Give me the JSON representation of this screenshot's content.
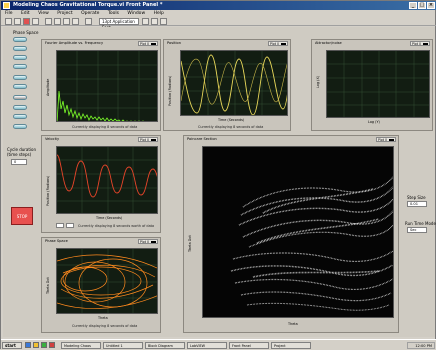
{
  "window": {
    "title": "Modeling Chaos Gravitational Torque.vi Front Panel *"
  },
  "menu": [
    "File",
    "Edit",
    "View",
    "Project",
    "Operate",
    "Tools",
    "Window",
    "Help"
  ],
  "toolbar": {
    "font": "13pt Application Font"
  },
  "left": {
    "phase_space_label": "Phase Space",
    "toggles": [
      "",
      "",
      "",
      "",
      "",
      "",
      "",
      "",
      "",
      ""
    ],
    "stop_label": "STOP",
    "cycle_label": "Cycle duration\n(time steps)",
    "cycle_value": "0"
  },
  "graphs": {
    "fourier": {
      "title": "Fourier Amplitude vs. Frequency",
      "legend": "Plot 0",
      "ylabel": "Amplitude",
      "footer": "Currently displaying 8 seconds of data"
    },
    "position": {
      "title": "Position",
      "legend": "Plot 0",
      "ylabel": "Position (Radians)",
      "xlabel": "Time (Seconds)",
      "footer": "Currently displaying 8 seconds of data"
    },
    "attractor": {
      "title": "Attractor/noise",
      "legend": "Plot 0",
      "ylabel": "Log (X)",
      "xlabel": "Log (Y)"
    },
    "velocity": {
      "title": "Velocity",
      "legend": "Plot 0",
      "ylabel": "Position (Radians)",
      "xlabel": "Time (Seconds)",
      "footer": "Currently displaying 8 seconds worth of data"
    },
    "phase": {
      "title": "Phase Space",
      "legend": "Plot 0",
      "ylabel": "Theta Dot",
      "xlabel": "Theta",
      "footer": "Currently displaying 8 seconds of data"
    },
    "poincare": {
      "title": "Poincare Section",
      "legend": "Plot 0",
      "ylabel": "Theta Dot",
      "xlabel": "Theta"
    }
  },
  "right_controls": {
    "step_label": "Step Size",
    "step_value": "0.01",
    "run_label": "Run Time Mode",
    "run_value": "Sec"
  },
  "taskbar": {
    "start": "start",
    "tasks": [
      "Modeling Chaos",
      "Untitled 1",
      "Block Diagram",
      "LabVIEW",
      "Front Panel",
      "Project"
    ],
    "clock": "12:00 PM"
  }
}
